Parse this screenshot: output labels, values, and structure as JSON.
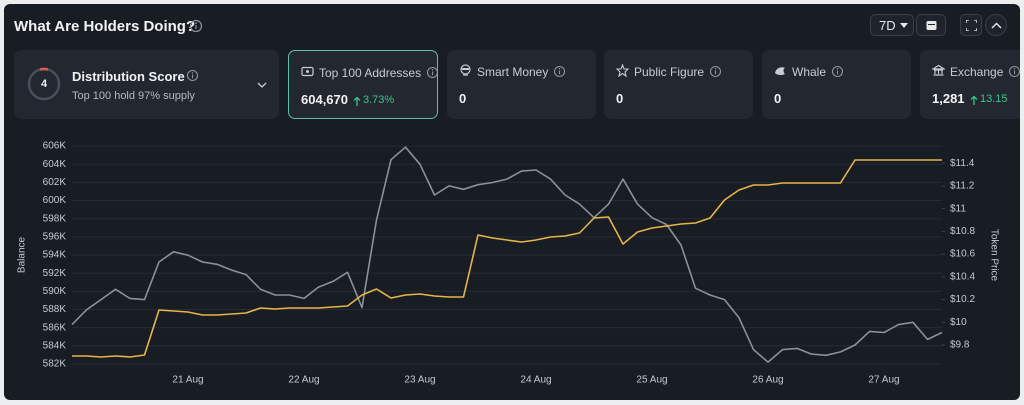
{
  "header": {
    "title": "What Are Holders Doing?",
    "range": "7D"
  },
  "distribution": {
    "title": "Distribution Score",
    "score": "4",
    "subtitle": "Top 100 hold 97% supply"
  },
  "cards": [
    {
      "label": "Top 100 Addresses",
      "value": "604,670",
      "change": "3.73%"
    },
    {
      "label": "Smart Money",
      "value": "0"
    },
    {
      "label": "Public Figure",
      "value": "0"
    },
    {
      "label": "Whale",
      "value": "0"
    },
    {
      "label": "Exchange",
      "value": "1,281",
      "change": "13.15"
    }
  ],
  "chart_data": {
    "type": "line",
    "y_label": "Balance",
    "y2_label": "Token Price",
    "categories": [
      null,
      null,
      null,
      null,
      null,
      null,
      null,
      null,
      "21 Aug",
      null,
      null,
      null,
      null,
      null,
      null,
      null,
      "22 Aug",
      null,
      null,
      null,
      null,
      null,
      null,
      null,
      "23 Aug",
      null,
      null,
      null,
      null,
      null,
      null,
      null,
      "24 Aug",
      null,
      null,
      null,
      null,
      null,
      null,
      null,
      "25 Aug",
      null,
      null,
      null,
      null,
      null,
      null,
      null,
      "26 Aug",
      null,
      null,
      null,
      null,
      null,
      null,
      null,
      "27 Aug",
      null,
      null,
      null,
      null
    ],
    "series": [
      {
        "color": "#e6b54a",
        "values": [
          582870,
          582870,
          582760,
          582870,
          582760,
          582980,
          587940,
          587830,
          587720,
          587390,
          587390,
          587500,
          587610,
          588160,
          588050,
          588160,
          588160,
          588160,
          588270,
          588380,
          589590,
          590250,
          589260,
          589590,
          589700,
          589480,
          589370,
          589370,
          596200,
          595870,
          595650,
          595430,
          595650,
          595980,
          596090,
          596420,
          598080,
          598190,
          595210,
          596530,
          596970,
          597190,
          597420,
          597530,
          598080,
          600060,
          601160,
          601710,
          601710,
          601930,
          601930,
          601930,
          601930,
          601930,
          604470,
          604470,
          604470,
          604470,
          604470,
          604470,
          604470
        ]
      },
      {
        "color": "#8b9099",
        "axis": "y2",
        "values": [
          9.98,
          10.11,
          10.2,
          10.29,
          10.21,
          10.2,
          10.53,
          10.62,
          10.59,
          10.53,
          10.51,
          10.46,
          10.42,
          10.29,
          10.24,
          10.24,
          10.21,
          10.31,
          10.36,
          10.44,
          10.13,
          10.9,
          11.43,
          11.54,
          11.39,
          11.12,
          11.2,
          11.17,
          11.21,
          11.23,
          11.26,
          11.33,
          11.34,
          11.26,
          11.12,
          11.04,
          10.92,
          11.04,
          11.26,
          11.04,
          10.92,
          10.86,
          10.68,
          10.3,
          10.24,
          10.2,
          10.04,
          9.76,
          9.65,
          9.76,
          9.77,
          9.72,
          9.71,
          9.74,
          9.8,
          9.92,
          9.91,
          9.98,
          10.0,
          9.85,
          9.91
        ]
      }
    ],
    "ylim": [
      581000,
      607000
    ],
    "yticks": [
      {
        "value": 582000,
        "label": "582K"
      },
      {
        "value": 584000,
        "label": "584K"
      },
      {
        "value": 586000,
        "label": "586K"
      },
      {
        "value": 588000,
        "label": "588K"
      },
      {
        "value": 590000,
        "label": "590K"
      },
      {
        "value": 592000,
        "label": "592K"
      },
      {
        "value": 594000,
        "label": "594K"
      },
      {
        "value": 596000,
        "label": "596K"
      },
      {
        "value": 598000,
        "label": "598K"
      },
      {
        "value": 600000,
        "label": "600K"
      },
      {
        "value": 602000,
        "label": "602K"
      },
      {
        "value": 604000,
        "label": "604K"
      },
      {
        "value": 606000,
        "label": "606K"
      }
    ],
    "y2lim": [
      9.554,
      11.63
    ],
    "y2ticks": [
      {
        "value": 9.8,
        "label": "$9.8"
      },
      {
        "value": 10,
        "label": "$10"
      },
      {
        "value": 10.2,
        "label": "$10.2"
      },
      {
        "value": 10.4,
        "label": "$10.4"
      },
      {
        "value": 10.6,
        "label": "$10.6"
      },
      {
        "value": 10.8,
        "label": "$10.8"
      },
      {
        "value": 11,
        "label": "$11"
      },
      {
        "value": 11.2,
        "label": "$11.2"
      },
      {
        "value": 11.4,
        "label": "$11.4"
      }
    ],
    "grid": true
  }
}
